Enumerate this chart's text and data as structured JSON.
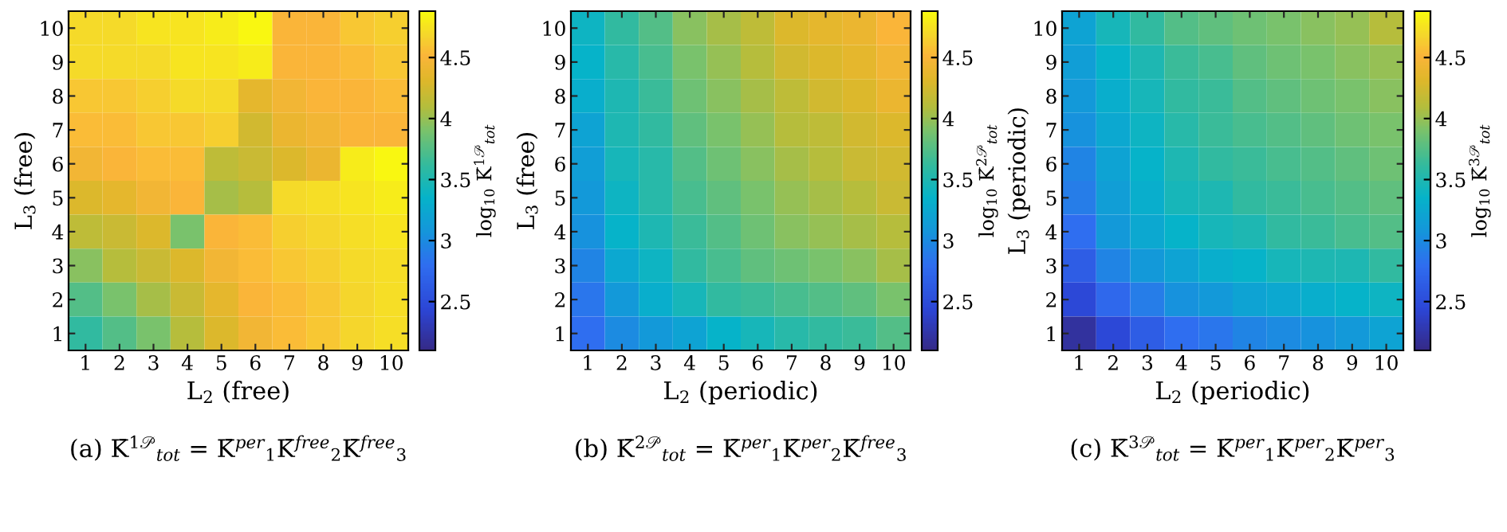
{
  "chart_data": [
    {
      "type": "heatmap",
      "title": "(a) K̄$^{1𝒫}$$_{tot}$ = K̄$^{per}$$_{1}$K̄$^{free}$$_{2}$K̄$^{free}$$_{3}$",
      "xlabel": "L$_{2}$ (free)",
      "ylabel": "L$_{3}$ (free)",
      "clabel": "log$_{10}$ K̄$^{1𝒫}$$_{tot}$",
      "categories": [
        "1",
        "2",
        "3",
        "4",
        "5",
        "6",
        "7",
        "8",
        "9",
        "10"
      ],
      "y_categories": [
        "10",
        "9",
        "8",
        "7",
        "6",
        "5",
        "4",
        "3",
        "2",
        "1"
      ],
      "cells": [
        [
          4.7,
          4.7,
          4.75,
          4.75,
          4.8,
          4.85,
          4.5,
          4.5,
          4.6,
          4.65
        ],
        [
          4.7,
          4.7,
          4.7,
          4.75,
          4.75,
          4.8,
          4.5,
          4.5,
          4.55,
          4.6
        ],
        [
          4.6,
          4.6,
          4.65,
          4.7,
          4.7,
          4.35,
          4.45,
          4.5,
          4.5,
          4.55
        ],
        [
          4.55,
          4.55,
          4.6,
          4.6,
          4.65,
          4.25,
          4.4,
          4.45,
          4.5,
          4.5
        ],
        [
          4.45,
          4.5,
          4.55,
          4.55,
          4.15,
          4.2,
          4.3,
          4.4,
          4.8,
          4.85
        ],
        [
          4.3,
          4.35,
          4.45,
          4.5,
          4.05,
          4.1,
          4.7,
          4.72,
          4.75,
          4.8
        ],
        [
          4.15,
          4.2,
          4.3,
          3.9,
          4.5,
          4.55,
          4.65,
          4.68,
          4.72,
          4.75
        ],
        [
          3.95,
          4.1,
          4.2,
          4.3,
          4.45,
          4.55,
          4.6,
          4.65,
          4.7,
          4.72
        ],
        [
          3.75,
          3.9,
          4.05,
          4.2,
          4.35,
          4.5,
          4.55,
          4.6,
          4.68,
          4.72
        ],
        [
          3.6,
          3.75,
          3.9,
          4.1,
          4.3,
          4.45,
          4.55,
          4.6,
          4.68,
          4.72
        ]
      ],
      "clim": [
        2.1,
        4.88
      ],
      "cticks": [
        2.5,
        3,
        3.5,
        4,
        4.5
      ]
    },
    {
      "type": "heatmap",
      "title": "(b) K̄$^{2𝒫}$$_{tot}$ = K̄$^{per}$$_{1}$K̄$^{per}$$_{2}$K̄$^{free}$$_{3}$",
      "xlabel": "L$_{2}$ (periodic)",
      "ylabel": "L$_{3}$ (free)",
      "clabel": "log$_{10}$ K̄$^{2𝒫}$$_{tot}$",
      "categories": [
        "1",
        "2",
        "3",
        "4",
        "5",
        "6",
        "7",
        "8",
        "9",
        "10"
      ],
      "y_categories": [
        "10",
        "9",
        "8",
        "7",
        "6",
        "5",
        "4",
        "3",
        "2",
        "1"
      ],
      "cells": [
        [
          3.4,
          3.6,
          3.75,
          3.95,
          4.05,
          4.15,
          4.3,
          4.35,
          4.4,
          4.5
        ],
        [
          3.35,
          3.55,
          3.7,
          3.9,
          4.0,
          4.1,
          4.25,
          4.3,
          4.35,
          4.45
        ],
        [
          3.3,
          3.5,
          3.65,
          3.85,
          3.95,
          4.05,
          4.15,
          4.25,
          4.3,
          4.4
        ],
        [
          3.2,
          3.5,
          3.6,
          3.8,
          3.9,
          4.0,
          4.1,
          4.15,
          4.25,
          4.3
        ],
        [
          3.15,
          3.45,
          3.55,
          3.75,
          3.85,
          3.95,
          4.05,
          4.1,
          4.2,
          4.25
        ],
        [
          3.1,
          3.4,
          3.55,
          3.7,
          3.8,
          3.9,
          4.0,
          4.05,
          4.1,
          4.2
        ],
        [
          3.05,
          3.35,
          3.5,
          3.65,
          3.75,
          3.85,
          3.95,
          4.0,
          4.05,
          4.1
        ],
        [
          2.95,
          3.25,
          3.4,
          3.6,
          3.7,
          3.8,
          3.85,
          3.9,
          3.95,
          4.05
        ],
        [
          2.85,
          3.1,
          3.3,
          3.45,
          3.6,
          3.65,
          3.7,
          3.75,
          3.8,
          3.9
        ],
        [
          2.8,
          3.0,
          3.1,
          3.2,
          3.35,
          3.45,
          3.55,
          3.6,
          3.65,
          3.75
        ]
      ],
      "clim": [
        2.1,
        4.88
      ],
      "cticks": [
        2.5,
        3,
        3.5,
        4,
        4.5
      ]
    },
    {
      "type": "heatmap",
      "title": "(c) K̄$^{3𝒫}$$_{tot}$ = K̄$^{per}$$_{1}$K̄$^{per}$$_{2}$K̄$^{per}$$_{3}$",
      "xlabel": "L$_{2}$ (periodic)",
      "ylabel": "L$_{3}$ (periodic)",
      "clabel": "log$_{10}$ K̄$^{3𝒫}$$_{tot}$",
      "categories": [
        "1",
        "2",
        "3",
        "4",
        "5",
        "6",
        "7",
        "8",
        "9",
        "10"
      ],
      "y_categories": [
        "10",
        "9",
        "8",
        "7",
        "6",
        "5",
        "4",
        "3",
        "2",
        "1"
      ],
      "cells": [
        [
          3.2,
          3.45,
          3.6,
          3.75,
          3.8,
          3.85,
          3.9,
          3.95,
          4.0,
          4.1
        ],
        [
          3.15,
          3.35,
          3.5,
          3.65,
          3.7,
          3.8,
          3.85,
          3.9,
          3.95,
          4.0
        ],
        [
          3.1,
          3.3,
          3.45,
          3.6,
          3.65,
          3.75,
          3.8,
          3.85,
          3.9,
          3.95
        ],
        [
          3.05,
          3.25,
          3.4,
          3.55,
          3.65,
          3.7,
          3.75,
          3.8,
          3.85,
          3.9
        ],
        [
          2.95,
          3.2,
          3.35,
          3.5,
          3.6,
          3.65,
          3.7,
          3.75,
          3.8,
          3.85
        ],
        [
          2.9,
          3.15,
          3.3,
          3.45,
          3.5,
          3.6,
          3.65,
          3.7,
          3.75,
          3.8
        ],
        [
          2.8,
          3.1,
          3.25,
          3.35,
          3.45,
          3.5,
          3.6,
          3.65,
          3.7,
          3.75
        ],
        [
          2.65,
          2.95,
          3.1,
          3.2,
          3.3,
          3.35,
          3.45,
          3.5,
          3.5,
          3.6
        ],
        [
          2.45,
          2.75,
          2.9,
          3.05,
          3.1,
          3.2,
          3.25,
          3.3,
          3.35,
          3.4
        ],
        [
          2.2,
          2.45,
          2.65,
          2.8,
          2.85,
          2.95,
          3.0,
          3.05,
          3.1,
          3.2
        ]
      ],
      "clim": [
        2.1,
        4.88
      ],
      "cticks": [
        2.5,
        3,
        3.5,
        4,
        4.5
      ]
    }
  ]
}
